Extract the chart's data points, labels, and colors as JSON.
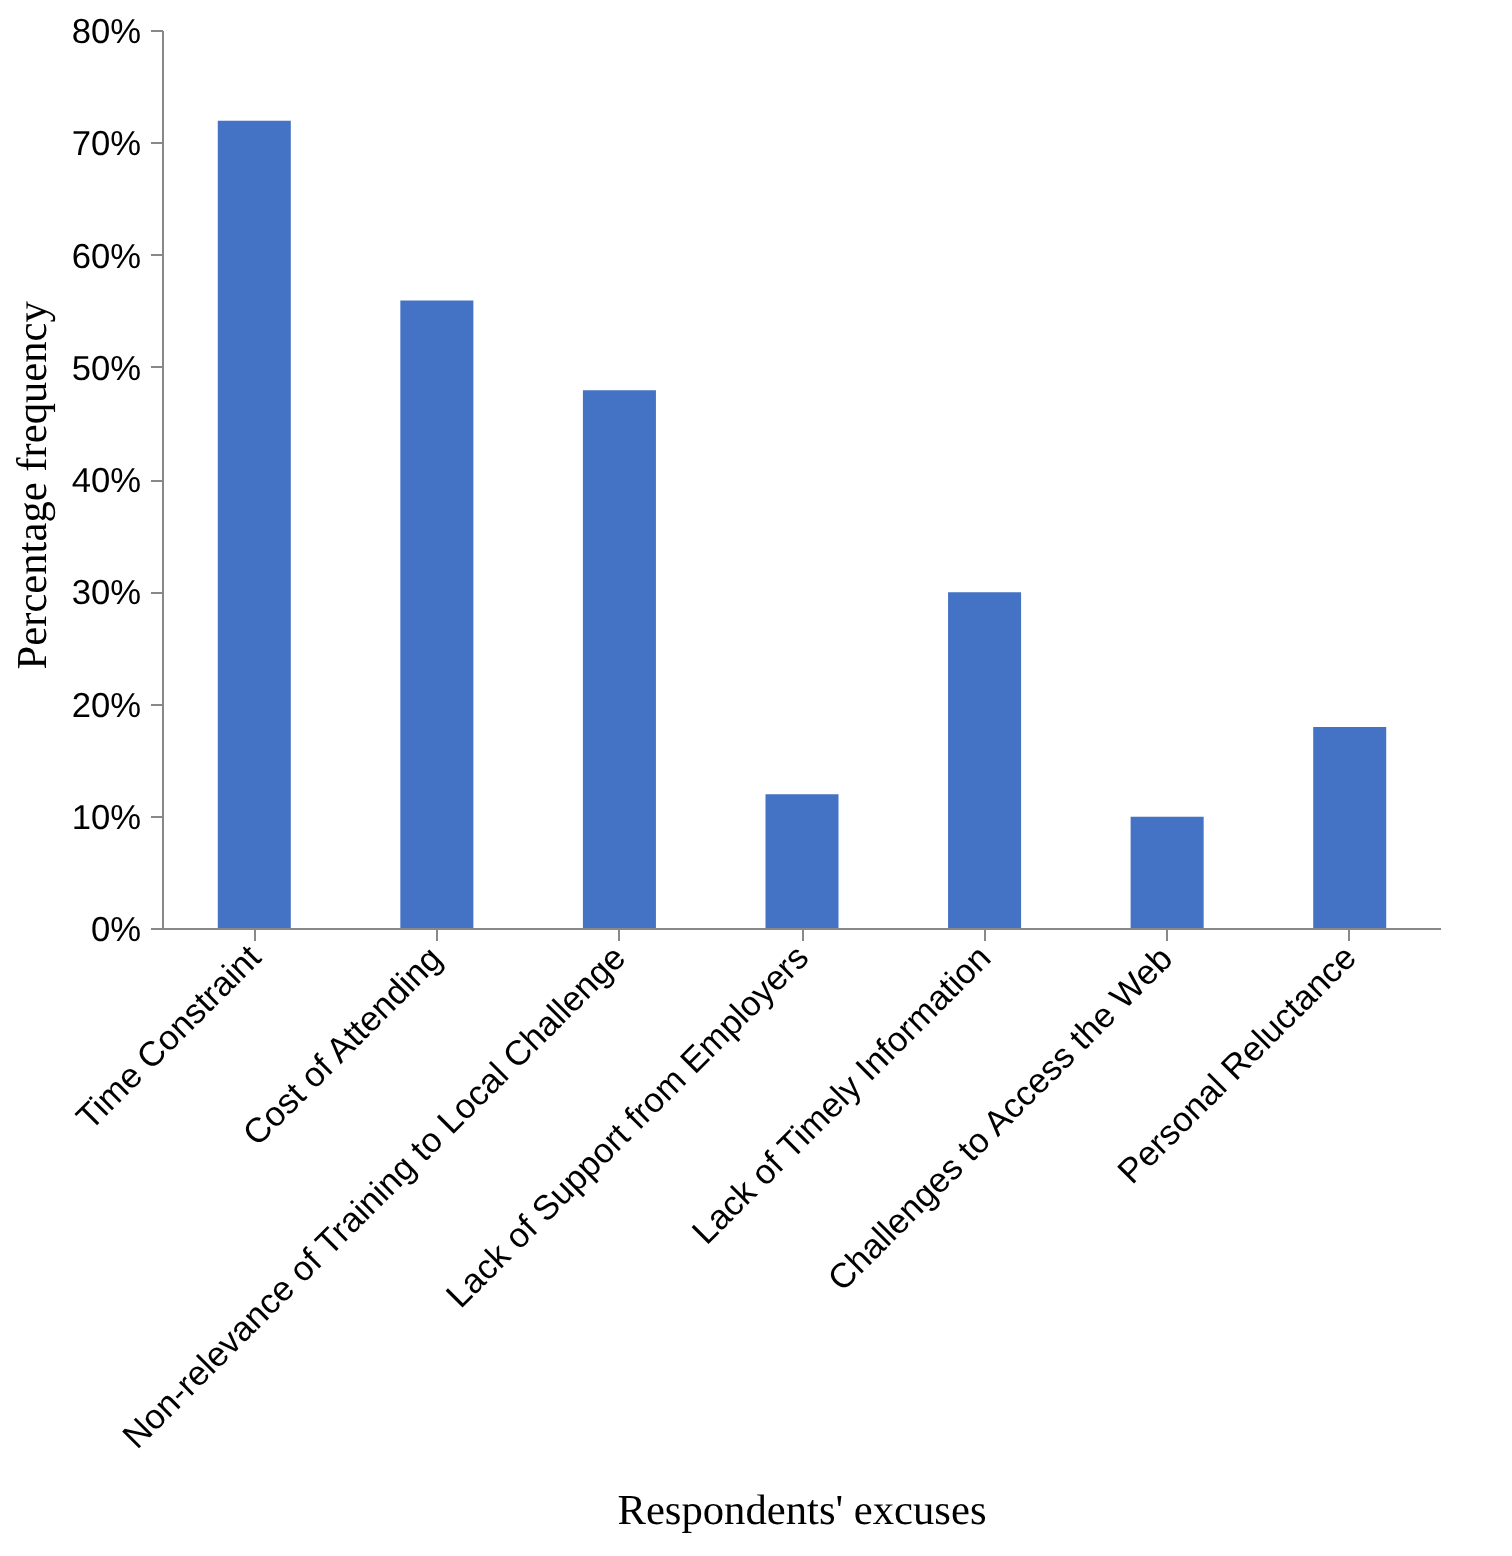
{
  "chart_data": {
    "type": "bar",
    "xlabel": "Respondents' excuses",
    "ylabel": "Percentage  frequency",
    "categories": [
      "Time Constraint",
      "Cost of Attending",
      "Non-relevance of Training to Local Challenge",
      "Lack of Support from Employers",
      "Lack of Timely Information",
      "Challenges to Access the Web",
      "Personal Reluctance"
    ],
    "values": [
      72,
      56,
      48,
      12,
      30,
      10,
      18
    ],
    "color": "#4472c4",
    "ylim": [
      0,
      80
    ],
    "yticks": [
      {
        "value": 0,
        "label": "0%"
      },
      {
        "value": 10,
        "label": "10%"
      },
      {
        "value": 20,
        "label": "20%"
      },
      {
        "value": 30,
        "label": "30%"
      },
      {
        "value": 40,
        "label": "40%"
      },
      {
        "value": 50,
        "label": "50%"
      },
      {
        "value": 60,
        "label": "60%"
      },
      {
        "value": 70,
        "label": "70%"
      },
      {
        "value": 80,
        "label": "80%"
      }
    ],
    "grid": false
  }
}
